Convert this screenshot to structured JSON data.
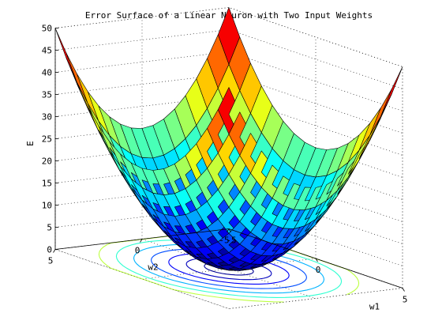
{
  "chart_data": {
    "type": "surface",
    "title": "Error Surface of a Linear Neuron with Two Input Weights",
    "xlabel": "w1",
    "ylabel": "w2",
    "zlabel": "E",
    "x_range": [
      -5,
      5
    ],
    "y_range": [
      -5,
      5
    ],
    "zlim": [
      0,
      50
    ],
    "x_ticks": [
      "-5",
      "0",
      "5"
    ],
    "y_ticks": [
      "-5",
      "0",
      "5"
    ],
    "z_ticks": [
      "0",
      "5",
      "10",
      "15",
      "20",
      "25",
      "30",
      "35",
      "40",
      "45",
      "50"
    ],
    "function": "E = w1^2 + w2^2",
    "grid": true,
    "colormap": "jet",
    "contour_levels": [
      1,
      3,
      6,
      10,
      15,
      21,
      28
    ],
    "colors": {
      "axis": "#000000",
      "grid": "#000000",
      "edge": "#000000"
    }
  }
}
